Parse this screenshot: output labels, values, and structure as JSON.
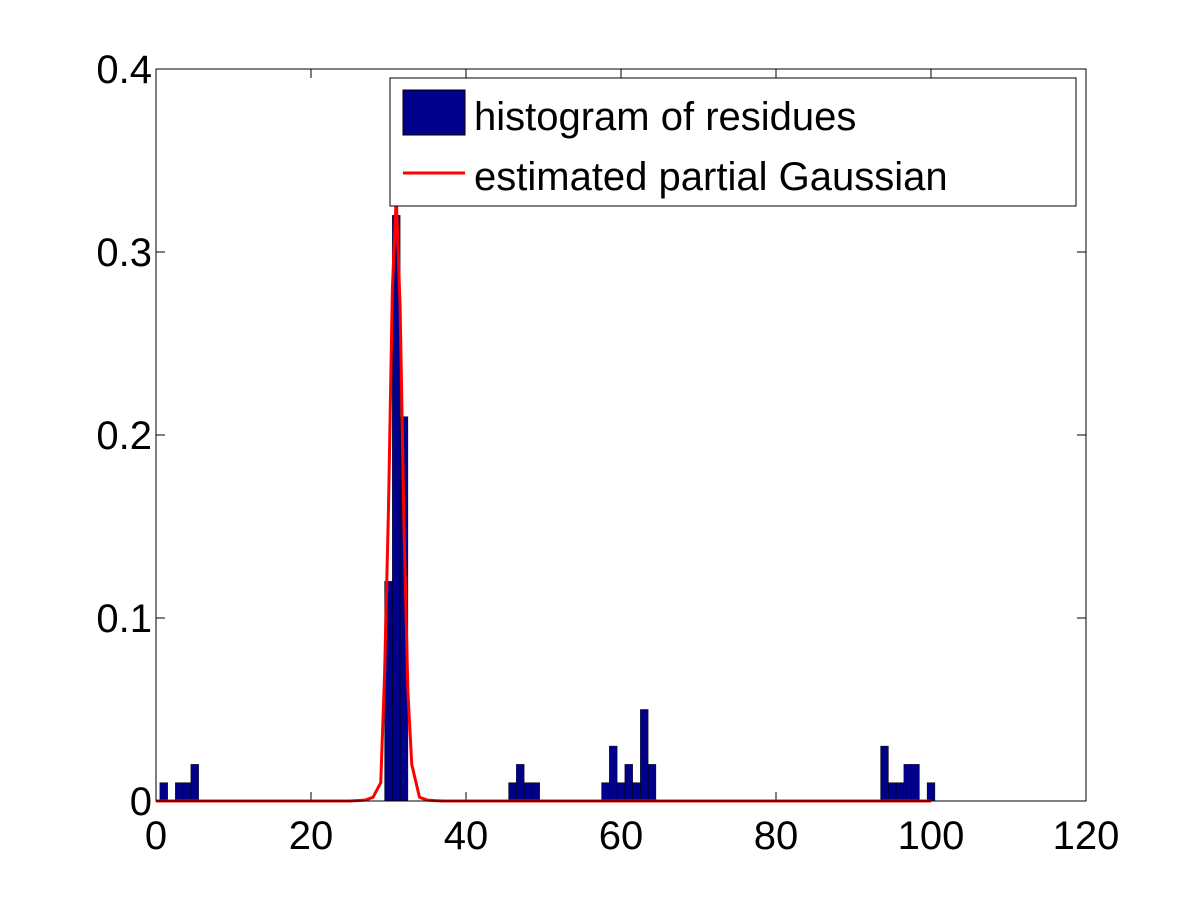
{
  "chart_data": {
    "type": "bar",
    "title": "",
    "xlabel": "",
    "ylabel": "",
    "xlim": [
      0,
      120
    ],
    "ylim": [
      0,
      0.4
    ],
    "xticks": [
      "0",
      "20",
      "40",
      "60",
      "80",
      "100",
      "120"
    ],
    "yticks": [
      "0",
      "0.1",
      "0.2",
      "0.3",
      "0.4"
    ],
    "grid": false,
    "legend_position": "top-right",
    "series": [
      {
        "name": "histogram of residues",
        "kind": "bar",
        "color": "#00008B",
        "bin_width": 1,
        "x": [
          1,
          3,
          4,
          5,
          30,
          31,
          32,
          46,
          47,
          48,
          49,
          58,
          59,
          60,
          61,
          62,
          63,
          64,
          94,
          95,
          96,
          97,
          98,
          100
        ],
        "values": [
          0.01,
          0.01,
          0.01,
          0.02,
          0.12,
          0.32,
          0.21,
          0.01,
          0.02,
          0.01,
          0.01,
          0.01,
          0.03,
          0.01,
          0.02,
          0.01,
          0.05,
          0.02,
          0.03,
          0.01,
          0.01,
          0.02,
          0.02,
          0.01
        ]
      },
      {
        "name": "estimated partial Gaussian",
        "kind": "line",
        "color": "#FF0000",
        "x": [
          0,
          25,
          27,
          28,
          29,
          29.5,
          30,
          30.5,
          31,
          31.5,
          32,
          32.5,
          33,
          34,
          35,
          36,
          37,
          100
        ],
        "values": [
          0,
          0,
          0.0005,
          0.002,
          0.01,
          0.07,
          0.16,
          0.28,
          0.33,
          0.27,
          0.15,
          0.06,
          0.02,
          0.002,
          0.0005,
          0.0002,
          0,
          0
        ]
      }
    ]
  }
}
